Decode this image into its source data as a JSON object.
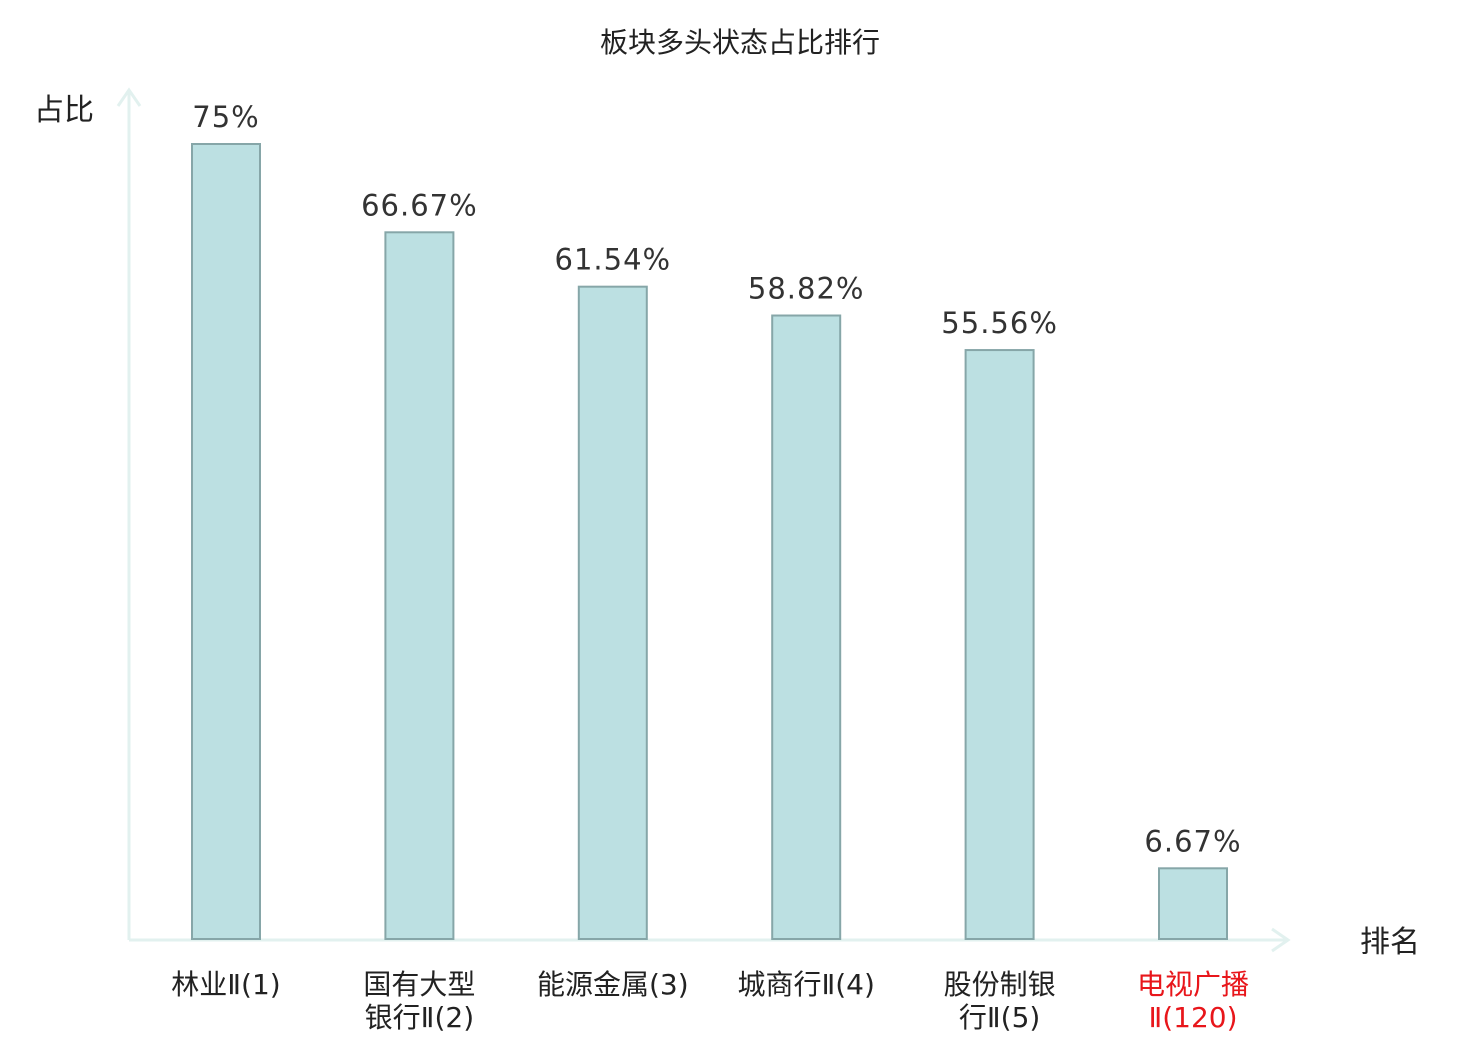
{
  "chart_data": {
    "type": "bar",
    "title": "板块多头状态占比排行",
    "ylabel": "占比",
    "xlabel": "排名",
    "ylim": [
      0,
      80
    ],
    "grid": false,
    "categories": [
      [
        "林业Ⅱ(1)"
      ],
      [
        "国有大型",
        "银行Ⅱ(2)"
      ],
      [
        "能源金属(3)"
      ],
      [
        "城商行Ⅱ(4)"
      ],
      [
        "股份制银",
        "行Ⅱ(5)"
      ],
      [
        "电视广播",
        "Ⅱ(120)"
      ]
    ],
    "values": [
      75,
      66.67,
      61.54,
      58.82,
      55.56,
      6.67
    ],
    "value_labels": [
      "75%",
      "66.67%",
      "61.54%",
      "58.82%",
      "55.56%",
      "6.67%"
    ],
    "highlight_index": 5,
    "colors": {
      "bar_fill": "#bce0e2",
      "bar_stroke": "#86a6a8",
      "axis": "#e2f1ef",
      "highlight_text": "#e8161b"
    }
  }
}
